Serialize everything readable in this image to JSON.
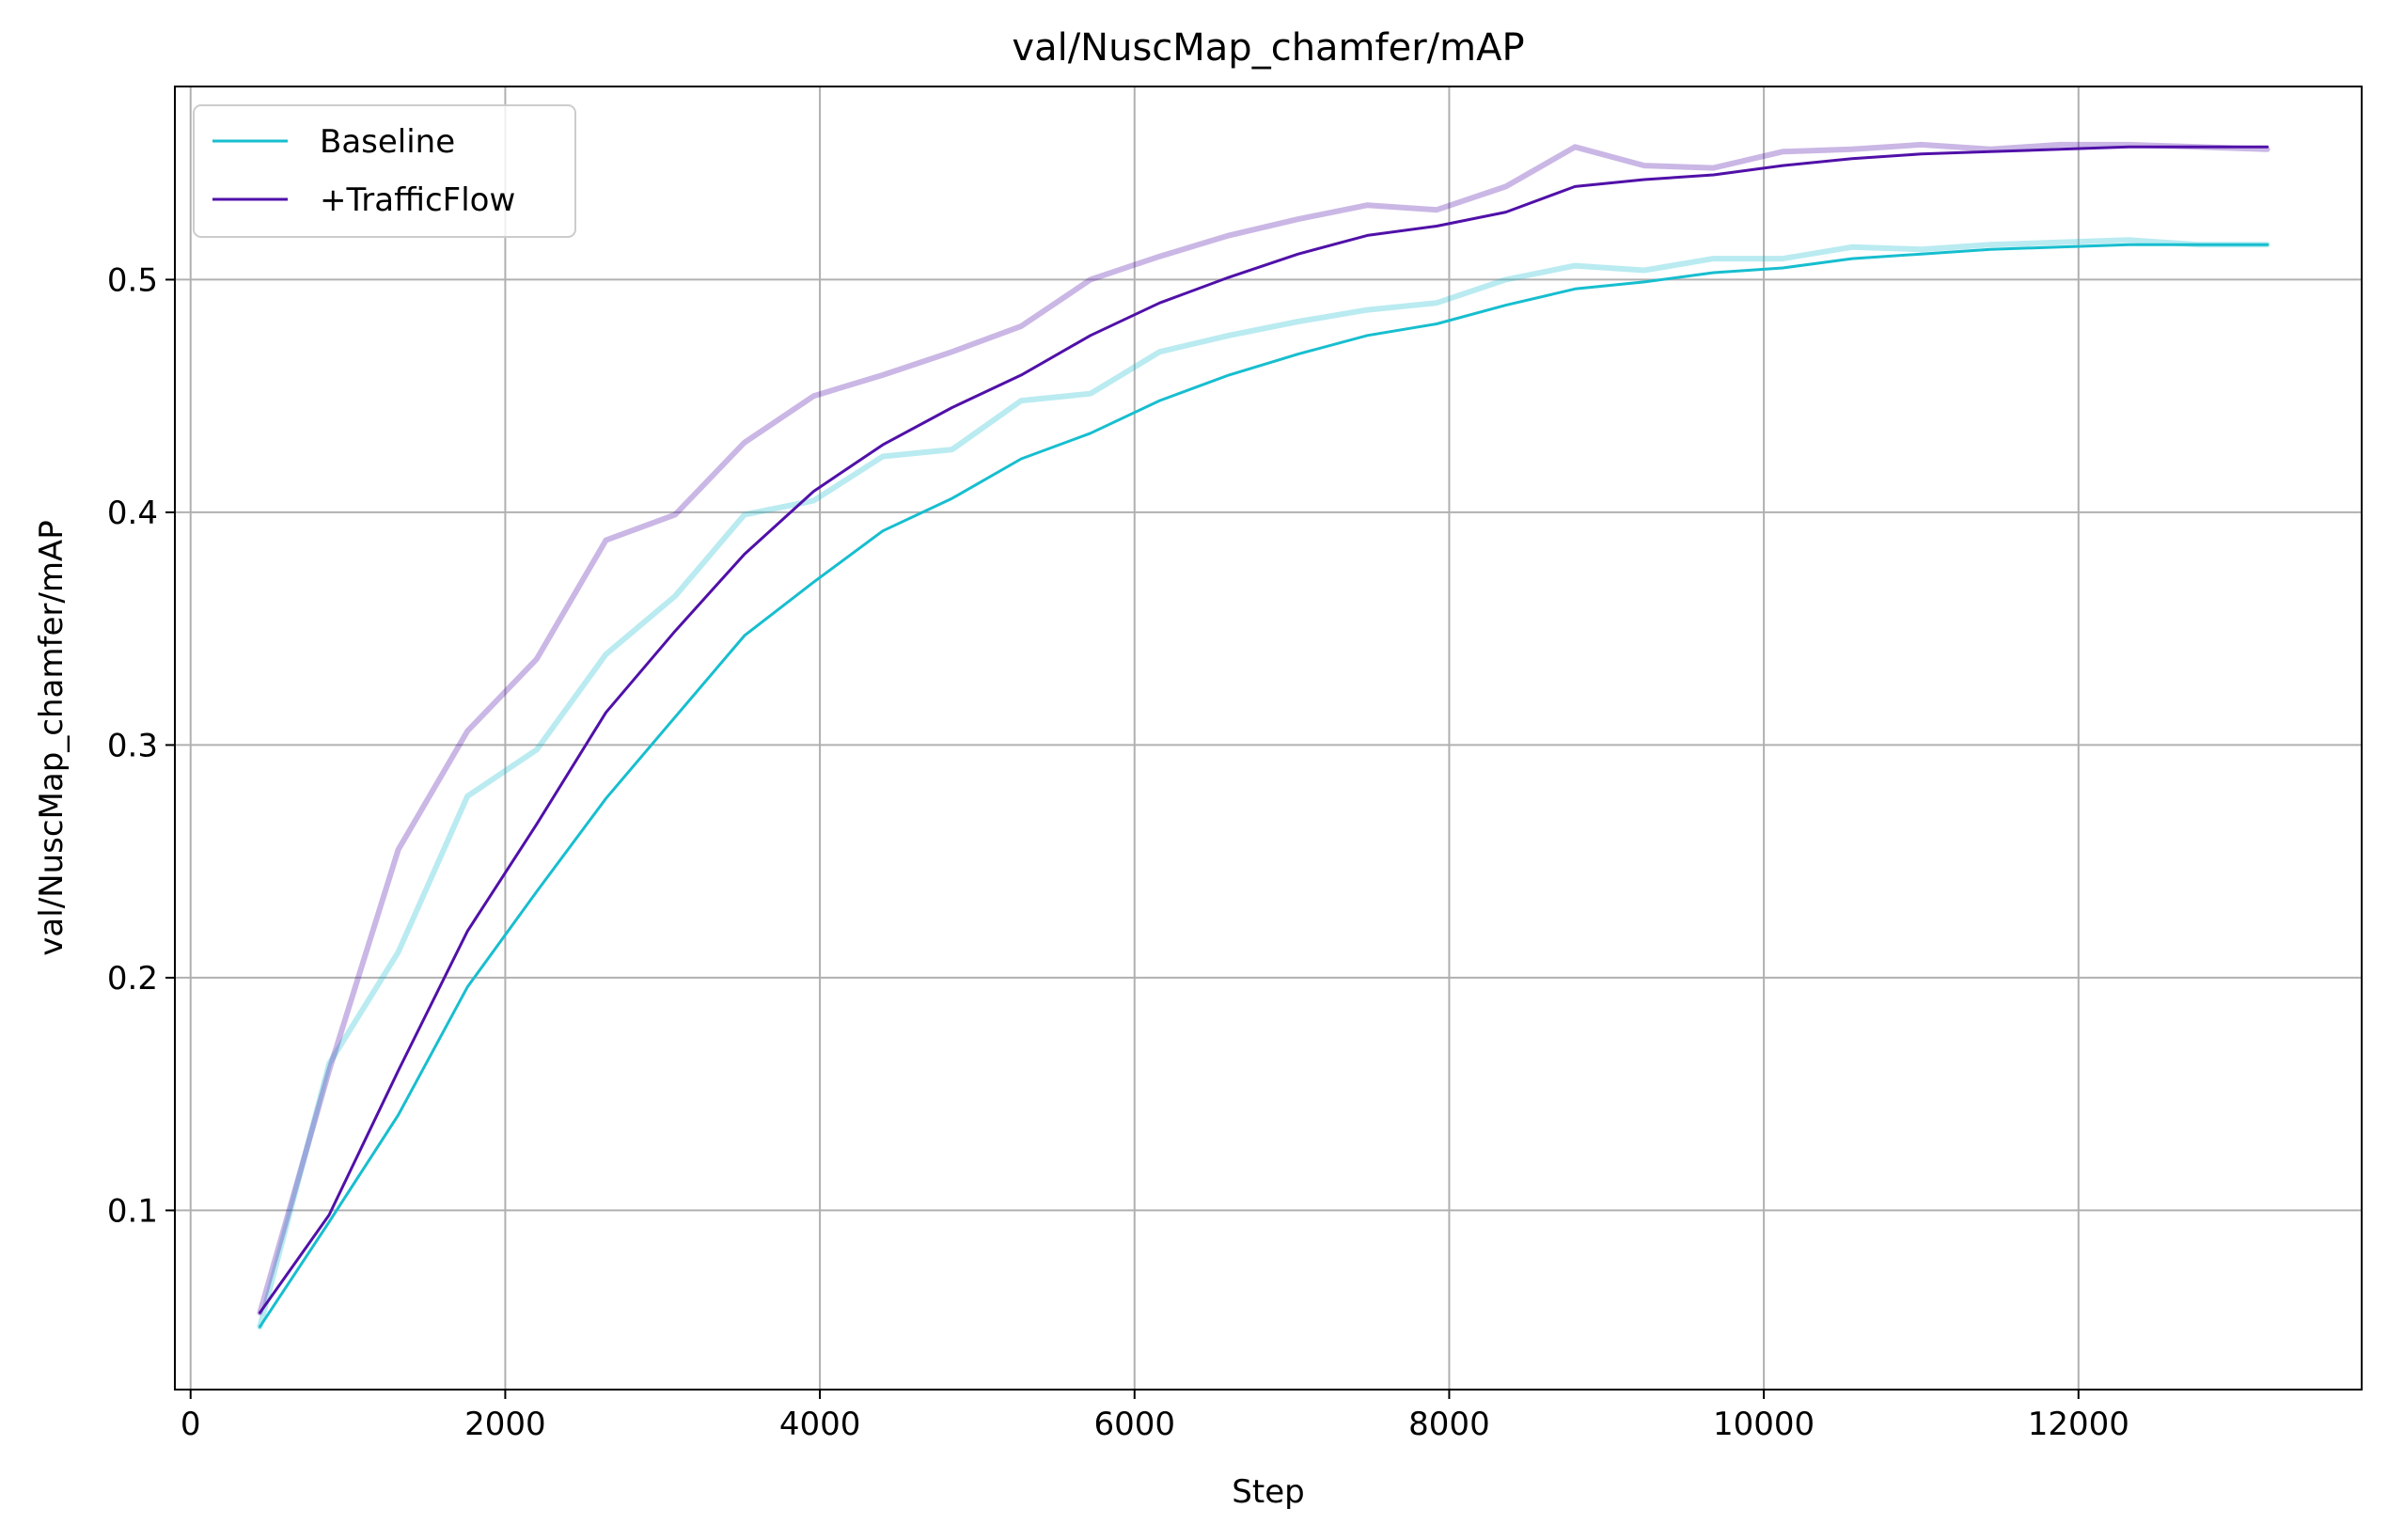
{
  "chart_data": {
    "type": "line",
    "title": "val/NuscMap_chamfer/mAP",
    "xlabel": "Step",
    "ylabel": "val/NuscMap_chamfer/mAP",
    "xlim": [
      -100,
      13800
    ],
    "ylim": [
      0.023,
      0.583
    ],
    "xticks": [
      0,
      2000,
      4000,
      6000,
      8000,
      10000,
      12000
    ],
    "xtick_labels": [
      "0",
      "2000",
      "4000",
      "6000",
      "8000",
      "10000",
      "12000"
    ],
    "yticks": [
      0.1,
      0.2,
      0.3,
      0.4,
      0.5
    ],
    "ytick_labels": [
      "0.1",
      "0.2",
      "0.3",
      "0.4",
      "0.5"
    ],
    "grid": true,
    "legend_position": "top-left",
    "x": [
      440,
      880,
      1320,
      1760,
      2200,
      2640,
      3080,
      3520,
      3960,
      4400,
      4840,
      5280,
      5720,
      6160,
      6600,
      7040,
      7480,
      7920,
      8360,
      8800,
      9240,
      9680,
      10120,
      10560,
      11000,
      11440,
      11880,
      12320,
      12760,
      13200
    ],
    "series": [
      {
        "name": "Baseline",
        "color": "#17becf",
        "values": [
          0.05,
          0.095,
          0.141,
          0.196,
          0.237,
          0.277,
          0.312,
          0.347,
          0.37,
          0.392,
          0.406,
          0.423,
          0.434,
          0.448,
          0.459,
          0.468,
          0.476,
          0.481,
          0.489,
          0.496,
          0.499,
          0.503,
          0.505,
          0.509,
          0.511,
          0.513,
          0.514,
          0.515,
          0.515,
          0.515
        ],
        "raw_values": [
          0.05,
          0.163,
          0.211,
          0.278,
          0.298,
          0.339,
          0.364,
          0.399,
          0.405,
          0.424,
          0.427,
          0.448,
          0.451,
          0.469,
          0.476,
          0.482,
          0.487,
          0.49,
          0.5,
          0.506,
          0.504,
          0.509,
          0.509,
          0.514,
          0.513,
          0.515,
          0.516,
          0.517,
          0.515,
          0.515
        ]
      },
      {
        "name": "+TrafficFlow",
        "color": "#5010a8",
        "values": [
          0.056,
          0.098,
          0.16,
          0.22,
          0.266,
          0.314,
          0.349,
          0.382,
          0.409,
          0.429,
          0.445,
          0.459,
          0.476,
          0.49,
          0.501,
          0.511,
          0.519,
          0.523,
          0.529,
          0.54,
          0.543,
          0.545,
          0.549,
          0.552,
          0.554,
          0.555,
          0.556,
          0.557,
          0.557,
          0.557
        ],
        "raw_values": [
          0.056,
          0.16,
          0.255,
          0.306,
          0.337,
          0.388,
          0.399,
          0.43,
          0.45,
          0.459,
          0.469,
          0.48,
          0.5,
          0.51,
          0.519,
          0.526,
          0.532,
          0.53,
          0.54,
          0.557,
          0.549,
          0.548,
          0.555,
          0.556,
          0.558,
          0.556,
          0.558,
          0.558,
          0.557,
          0.556
        ]
      }
    ]
  }
}
